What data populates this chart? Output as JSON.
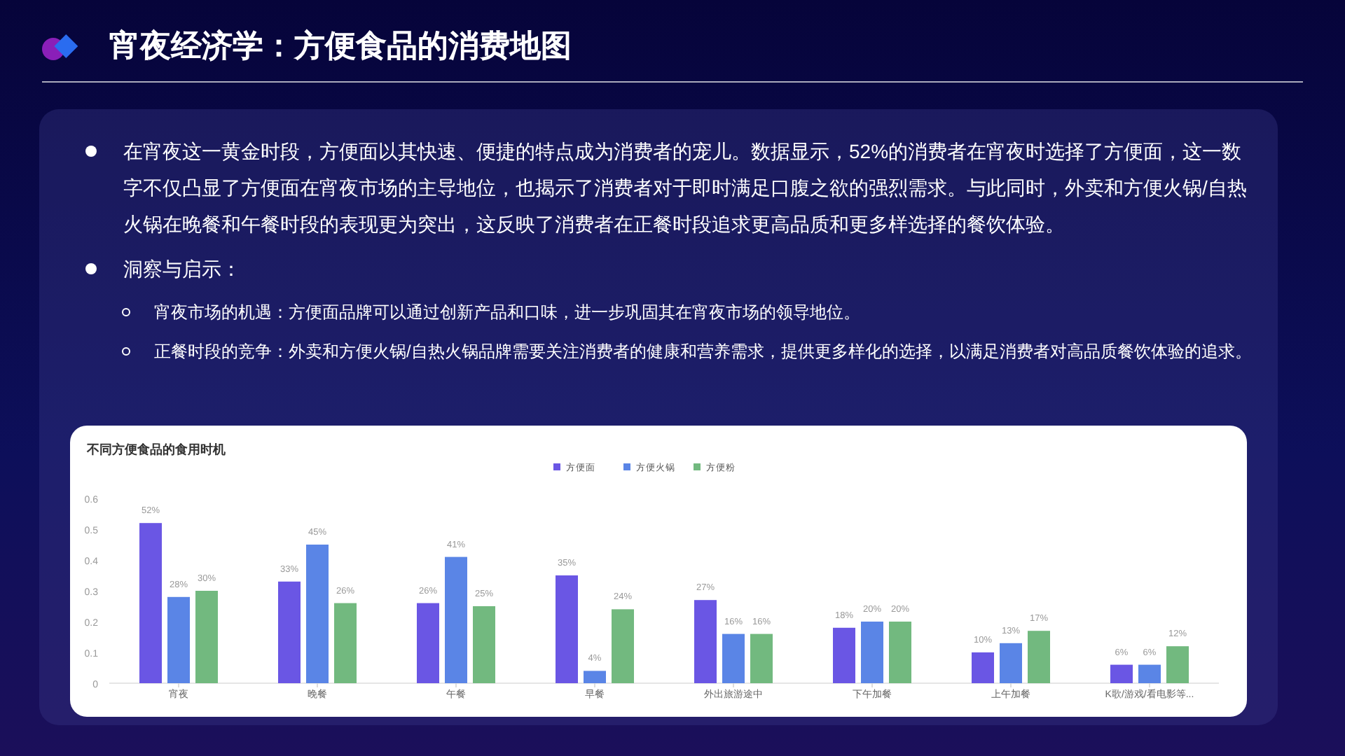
{
  "chart_data": {
    "type": "bar",
    "title": "宵夜经济学：方便食品的消费地图",
    "subtitle": "不同方便食品的食用时机",
    "annotations": [
      "在宵夜这一黄金时段，方便面以其快速、便捷的特点成为消费者的宠儿。数据显示，52%的消费者在宵夜时选择了方便面，这一数字不仅凸显了方便面在宵夜市场的主导地位，也揭示了消费者对于即时满足口腹之欲的强烈需求。与此同时，外卖和方便火锅/自热火锅在晚餐和午餐时段的表现更为突出，这反映了消费者在正餐时段追求更高品质和更多样选择的餐饮体验。",
      "洞察与启示：",
      "宵夜市场的机遇：方便面品牌可以通过创新产品和口味，进一步巩固其在宵夜市场的领导地位。",
      "正餐时段的竞争：外卖和方便火锅/自热火锅品牌需要关注消费者的健康和营养需求，提供更多样化的选择，以满足消费者对高品质餐饮体验的追求。"
    ],
    "categories": [
      "宵夜",
      "晚餐",
      "午餐",
      "早餐",
      "外出旅游途中",
      "下午加餐",
      "上午加餐",
      "K歌/游戏/看电影等..."
    ],
    "series": [
      {
        "name": "方便面",
        "color": "#6a56e4",
        "values": [
          0.52,
          0.33,
          0.26,
          0.35,
          0.27,
          0.18,
          0.1,
          0.06
        ],
        "value_labels": [
          "52%",
          "33%",
          "26%",
          "35%",
          "27%",
          "18%",
          "10%",
          "6%"
        ]
      },
      {
        "name": "方便火锅",
        "color": "#5a85e6",
        "values": [
          0.28,
          0.45,
          0.41,
          0.04,
          0.16,
          0.2,
          0.13,
          0.06
        ],
        "value_labels": [
          "28%",
          "45%",
          "41%",
          "4%",
          "16%",
          "20%",
          "13%",
          "6%"
        ]
      },
      {
        "name": "方便粉",
        "color": "#72b97f",
        "values": [
          0.3,
          0.26,
          0.25,
          0.24,
          0.16,
          0.2,
          0.17,
          0.12
        ],
        "value_labels": [
          "30%",
          "26%",
          "25%",
          "24%",
          "16%",
          "20%",
          "17%",
          "12%"
        ]
      }
    ],
    "ylim": [
      0,
      0.6
    ],
    "yticks": [
      0,
      0.1,
      0.2,
      0.3,
      0.4,
      0.5,
      0.6
    ],
    "legend": "top",
    "grid": false
  }
}
